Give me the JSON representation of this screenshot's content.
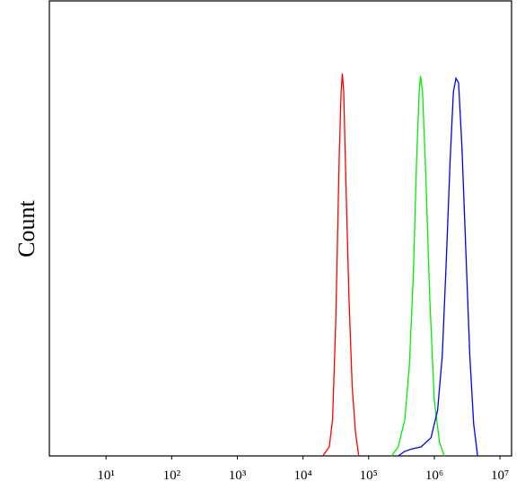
{
  "chart_data": {
    "type": "line",
    "ylabel": "Count",
    "xscale": "log",
    "xlim": [
      1.37,
      15000000
    ],
    "ylim": [
      0,
      100
    ],
    "xticks": [
      {
        "value": 10,
        "label": "10¹"
      },
      {
        "value": 100,
        "label": "10²"
      },
      {
        "value": 1000,
        "label": "10³"
      },
      {
        "value": 10000,
        "label": "10⁴"
      },
      {
        "value": 100000,
        "label": "10⁵"
      },
      {
        "value": 1000000,
        "label": "10⁶"
      },
      {
        "value": 10000000,
        "label": "10⁷"
      }
    ],
    "series": [
      {
        "color": "#ff0000",
        "x": [
          20000,
          25100,
          28200,
          31600,
          35500,
          38000,
          39800,
          41700,
          44700,
          50100,
          56200,
          63100,
          70800
        ],
        "values": [
          0,
          2,
          8,
          30,
          65,
          80,
          84,
          80,
          62,
          35,
          15,
          5,
          0
        ]
      },
      {
        "color": "#00ee00",
        "x": [
          224000,
          282000,
          355000,
          417000,
          479000,
          537000,
          589000,
          617000,
          661000,
          741000,
          851000,
          1000000,
          1200000,
          1410000
        ],
        "values": [
          0,
          2,
          8,
          20,
          40,
          65,
          80,
          83.5,
          80,
          62,
          35,
          12,
          3,
          0
        ]
      },
      {
        "color": "#0000ff",
        "x": [
          282000,
          355000,
          447000,
          631000,
          891000,
          1120000,
          1320000,
          1510000,
          1740000,
          1950000,
          2140000,
          2340000,
          2630000,
          3020000,
          3470000,
          3980000,
          4570000
        ],
        "values": [
          0,
          1,
          1.5,
          2,
          4,
          10,
          22,
          42,
          65,
          80,
          83,
          82,
          68,
          45,
          22,
          7,
          0
        ]
      }
    ]
  }
}
